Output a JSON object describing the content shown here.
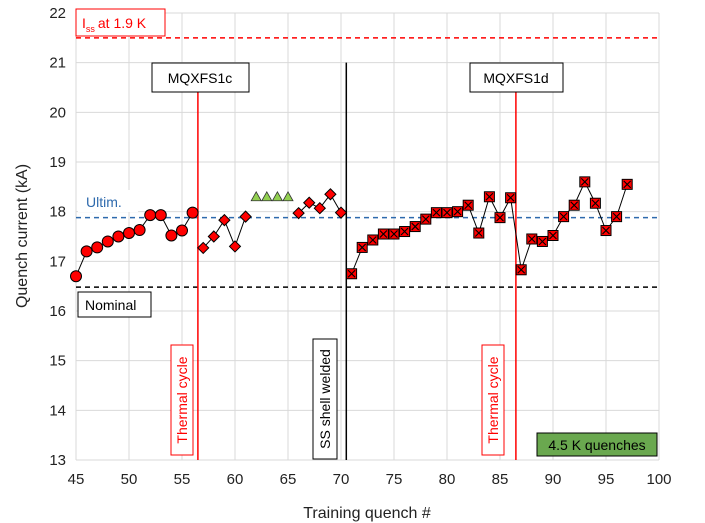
{
  "chart_data": {
    "type": "scatter",
    "xlabel": "Training quench #",
    "ylabel": "Quench current (kA)",
    "xlim": [
      45,
      100
    ],
    "ylim": [
      13,
      22
    ],
    "xticks": [
      45,
      50,
      55,
      60,
      65,
      70,
      75,
      80,
      85,
      90,
      95,
      100
    ],
    "yticks": [
      13,
      14,
      15,
      16,
      17,
      18,
      19,
      20,
      21,
      22
    ],
    "grid": true,
    "series": [
      {
        "marker": "circle",
        "color": "#ff0000",
        "points": [
          [
            45,
            16.7
          ],
          [
            46,
            17.2
          ],
          [
            47,
            17.28
          ],
          [
            48,
            17.4
          ],
          [
            49,
            17.5
          ],
          [
            50,
            17.57
          ],
          [
            51,
            17.63
          ],
          [
            52,
            17.93
          ],
          [
            53,
            17.93
          ],
          [
            54,
            17.52
          ],
          [
            55,
            17.62
          ],
          [
            56,
            17.98
          ]
        ]
      },
      {
        "marker": "diamond",
        "color": "#ff0000",
        "points": [
          [
            57,
            17.27
          ],
          [
            58,
            17.5
          ],
          [
            59,
            17.83
          ],
          [
            60,
            17.3
          ],
          [
            61,
            17.9
          ],
          [
            66,
            17.97
          ],
          [
            67,
            18.18
          ],
          [
            68,
            18.07
          ],
          [
            69,
            18.35
          ],
          [
            70,
            17.98
          ]
        ]
      },
      {
        "marker": "triangle",
        "color": "#92d050",
        "points": [
          [
            62,
            18.3
          ],
          [
            63,
            18.3
          ],
          [
            64,
            18.3
          ],
          [
            65,
            18.3
          ]
        ]
      },
      {
        "marker": "square-x",
        "color": "#ff0000",
        "points": [
          [
            71,
            16.75
          ],
          [
            72,
            17.28
          ],
          [
            73,
            17.43
          ],
          [
            74,
            17.55
          ],
          [
            75,
            17.55
          ],
          [
            76,
            17.6
          ],
          [
            77,
            17.7
          ],
          [
            78,
            17.85
          ],
          [
            79,
            17.98
          ],
          [
            80,
            17.98
          ],
          [
            81,
            18.0
          ],
          [
            82,
            18.13
          ],
          [
            83,
            17.57
          ],
          [
            84,
            18.3
          ],
          [
            85,
            17.88
          ],
          [
            86,
            18.28
          ],
          [
            87,
            16.83
          ],
          [
            88,
            17.45
          ],
          [
            89,
            17.4
          ],
          [
            90,
            17.52
          ],
          [
            91,
            17.9
          ],
          [
            92,
            18.13
          ],
          [
            93,
            18.6
          ],
          [
            94,
            18.17
          ],
          [
            95,
            17.62
          ],
          [
            96,
            17.9
          ],
          [
            97,
            18.55
          ]
        ]
      }
    ],
    "reference_lines": [
      {
        "label": "at 1.9 K",
        "label_main": "I",
        "label_sub": "ss",
        "y": 21.5,
        "color": "#ff0000"
      },
      {
        "label": "Ultim.",
        "y": 17.88,
        "color": "#2e6aad"
      },
      {
        "label": "Nominal",
        "y": 16.48,
        "color": "#000000"
      }
    ],
    "vertical_lines": [
      {
        "x": 56.5,
        "color": "#ff0000",
        "label": "Thermal cycle"
      },
      {
        "x": 70.5,
        "color": "#000000",
        "label": "SS shell welded"
      },
      {
        "x": 86.5,
        "color": "#ff0000",
        "label": "Thermal cycle"
      }
    ],
    "magnet_labels": [
      "MQXFS1c",
      "MQXFS1d"
    ],
    "legend_note": "4.5 K quenches"
  }
}
